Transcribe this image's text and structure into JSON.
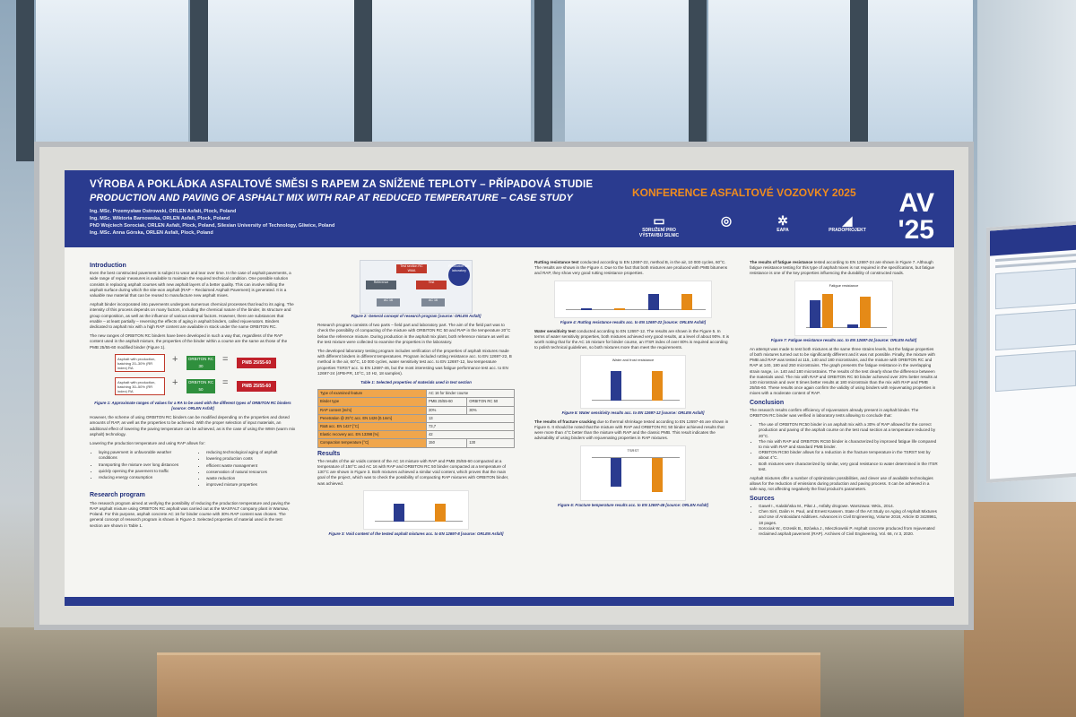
{
  "poster": {
    "title_cz": "VÝROBA A POKLÁDKA ASFALTOVÉ SMĚSI S RAPEM ZA SNÍŽENÉ TEPLOTY – PŘÍPADOVÁ STUDIE",
    "title_en": "PRODUCTION AND PAVING OF ASPHALT MIX WITH RAP AT REDUCED TEMPERATURE – CASE STUDY",
    "authors": [
      "Ing. MSc. Przemysław Ostrowski, ORLEN Asfalt, Plock, Poland",
      "Ing. MSc. Wiktoria Barnowska, ORLEN Asfalt, Plock, Poland",
      "PhD Wojciech Sorociak, ORLEN Asfalt, Plock, Poland, Silesian University of Technology, Gliwice, Poland",
      "Ing. MSc. Anna Górska, ORLEN Asfalt, Plock, Poland"
    ],
    "conference": "KONFERENCE ASFALTOVÉ VOZOVKY 2025",
    "av_mark_line1": "AV",
    "av_mark_line2": "'25",
    "logos": [
      {
        "icon": "sdruzeni-logo",
        "label": "SDRUŽENÍ PRO VÝSTAVBU SILNIC"
      },
      {
        "icon": "cs-logo",
        "label": ""
      },
      {
        "icon": "eapa-logo",
        "label": "EAPA"
      },
      {
        "icon": "pradoprojekt-logo",
        "label": "PRADOPROJEKT"
      }
    ]
  },
  "col1": {
    "intro_heading": "Introduction",
    "intro_p1": "Even the best constructed pavement is subject to wear and tear over time. In the case of asphalt pavements, a wide range of repair measures is available to maintain the required technical condition. One possible solution consists in replacing asphalt courses with new asphalt layers of a better quality. This can involve milling the asphalt surface during which the site-won asphalt (RAP – Reclaimed Asphalt Pavement) is generated. It is a valuable raw material that can be reused to manufacture new asphalt mixes.",
    "intro_p2": "Asphalt binder incorporated into pavements undergoes numerous chemical processes that lead to its aging. The intensity of this process depends on many factors, including the chemical nature of the binder, its structure and group composition, as well as the influence of various external factors. However, there are substances that enable – at least partially – reversing the effects of aging in asphalt binders, called rejuvenators. Binders dedicated to asphalt mix with a high RAP content are available in stock under the name ORBITON RC.",
    "intro_p3": "The new ranges of ORBITON RC binders have been developed in such a way that, regardless of the RAP content used in the asphalt mixture, the properties of the binder within a course are the same as those of the PMB 25/55-60 modified binder (Figure 1).",
    "rap_row1": {
      "box": "Asphalt with production, batching 20–30% (RR index) RA",
      "green": "ORBITON RC 30",
      "red": "PMB 25/55-60"
    },
    "rap_row2": {
      "box": "Asphalt with production, batching 30–50% (RR index) RA",
      "green": "ORBITON RC 50",
      "red": "PMB 25/55-60"
    },
    "fig1_caption": "Figure 1: Approximate ranges of values for a RA to be used with the different types of ORBITON RC binders [source: ORLEN Asfalt]",
    "intro_p4": "However, the scheme of using ORBITON RC binders can be modified depending on the properties and dosed amounts of RAP, as well as the properties to be achieved. With the proper selection of input materials, an additional effect of lowering the paving temperature can be achieved, as is the case of using the WMA (warm mix asphalt) technology.",
    "lower_temp_lead": "Lowering the production temperature and using RAP allows for:",
    "bullets_left": [
      "laying pavement in unfavorable weather conditions",
      "transporting the mixture over long distances",
      "quickly opening the pavement to traffic",
      "reducing energy consumption"
    ],
    "bullets_right": [
      "reducing technological aging of asphalt",
      "lowering production costs",
      "efficient waste management",
      "conservation of natural resources",
      "waste reduction",
      "improved mixture properties"
    ],
    "research_heading": "Research program",
    "research_p1": "The research program aimed at verifying the possibility of reducing the production temperature and paving the RAP asphalt mixture using ORBITON RC asphalt was carried out at the MASFALT company plant in Warsaw, Poland. For this purpose, asphalt concrete AC 16 for binder course with 30% RAP content was chosen. The general concept of research program is shown in Figure 3. Selected properties of material used in the test section are shown in Table 1."
  },
  "col2": {
    "diagram_labels": {
      "top": "Test section RC WMA",
      "left": "Reference",
      "right": "Test",
      "side": "Production site laboratory",
      "bl": "AC 16",
      "br": "AC 16"
    },
    "fig2_caption": "Figure 2: General concept of research program [source: ORLEN Asfalt]",
    "p1": "Research program consists of two parts – field part and laboratory part. The aim of the field part was to check the possibility of compacting of the mixture with ORBITON RC 50 and RAP in the temperature 20°C below the reference mixture. During production in the asphalt mix plant, both reference mixture as well as the test mixture were collected to examine the properties in the laboratory.",
    "p2": "The developed laboratory testing program includes verification of the properties of asphalt mixtures made with different binders in different temperatures. Program included rutting resistance acc. to EN 12697-22, B method in the air, 60°C, 10 000 cycles, water sensitivity test acc. to EN 12697-12, low temperature properties TSRST acc. to EN 12697-46, but the most interesting was fatigue performance test acc. to EN 12697-24 (4PB-PR, 10°C, 10 Hz, 18 samples).",
    "table1_caption": "Table 1: Selected properties of materials used in test section",
    "table1": {
      "head": [
        "Type of examined feature",
        "",
        "AC 16 for binder course"
      ],
      "subhead": [
        "Binder type",
        "PMB 25/55-60",
        "ORBITON RC 50"
      ],
      "rows": [
        [
          "RAP content [m/m]",
          "20%",
          "30%"
        ],
        [
          "Penetration @ 25°C acc. EN 1426 [0.1mm]",
          "13",
          ""
        ],
        [
          "R&B acc. EN 1427 [°C]",
          "73,7",
          ""
        ],
        [
          "Elastic recovery acc. EN 13398 [%]",
          "42",
          ""
        ],
        [
          "Compaction temperature [°C]",
          "150",
          "130"
        ]
      ],
      "group_label": "RAP binder properties"
    },
    "results_heading": "Results",
    "results_p": "The results of the air voids content of the AC 16 mixture with RAP and PMB 25/55-60 compacted at a temperature of 150°C and AC 16 with RAP and ORBITON RC 50 binder compacted at a temperature of 130°C are shown in Figure 3. Both mixtures achieved a similar void content, which proves that the main goal of the project, which was to check the possibility of compacting RAP mixtures with ORBITON binder, was achieved.",
    "fig3_caption": "Figure 3: Void content of the tested asphalt mixtures acc. to EN 12697-8 [source: ORLEN Asfalt]"
  },
  "col3": {
    "rut_lead": "Rutting resistance test",
    "rut_p": "conducted according to EN 12697-22, method B, in the air, 10 000 cycles, 60°C. The results are shown in the Figure 4. Due to the fact that both mixtures are produced with PMB bitumens and RAP, they show very good rutting resistance properties.",
    "fig4_caption": "Figure 4: Rutting resistance results acc. to EN 12697-22 [source: ORLEN Asfalt]",
    "water_lead": "Water sensitivity test",
    "water_p": "conducted according to EN 12697-12. The results are shown in the Figure 5. In terms of water sensitivity properties, both mixtures achieved very good results, at a level of about 90%. It is worth noting that for the AC 16 mixture for binder course, an ITSR index of over 80% is required according to polish technical guidelines, so both mixtures more than meet the requirements.",
    "fig5_title": "Water and frost resistance",
    "fig5_caption": "Figure 5: Water sensitivity results acc. to EN 12697-12 [source: ORLEN Asfalt]",
    "fracture_lead": "The results of fracture cracking",
    "fracture_p": "due to thermal shrinkage tested according to EN 12697-46 are shown in Figure 6. It should be noted that the mixture with RAP and ORBITON RC 50 binder achieved results that were more than 4°C better than the mixture with RAP and the classic PMB. This result indicates the advisability of using binders with rejuvenating properties in RAP mixtures.",
    "fig6_title": "TSRST",
    "fig6_caption": "Figure 6: Fracture temperature results acc. to EN 12697-46 [source: ORLEN Asfalt]"
  },
  "col4": {
    "fatigue_lead": "The results of fatigue resistance",
    "fatigue_p": "tested according to EN 12697-24 are shown in Figure 7. Although fatigue resistance testing for this type of asphalt mixes is not required in the specifications, but fatigue resistance is one of the key properties influencing the durability of constructed roads.",
    "fig7_title": "Fatigue resistance",
    "fig7_caption": "Figure 7: Fatigue resistance results acc. to EN 12697-24 [source: ORLEN Asfalt]",
    "p2": "An attempt was made to test both mixtures at the same three strains levels, but the fatigue properties of both mixtures turned out to be significantly different and it was not possible. Finally, the mixture with PMB and RAP was tested at 115, 140 and 180 microstrains, and the mixture with ORBITON RC and RAP at 140, 180 and 250 microstrains. The graph presents the fatigue resistance in the overlapping strain range, i.e. 140 and 180 microstrains. The results of the test clearly show the difference between the materials used. The mix with RAP and ORBITON RC 50 binder achieved over 20% better results at 140 microstrain and over 8 times better results at 180 microstrain than the mix with RAP and PMB 25/55-60. These results once again confirm the validity of using binders with rejuvenating properties in mixes with a moderate content of RAP.",
    "conclusion_heading": "Conclusion",
    "conclusion_p": "The research results confirm efficiency of rejuvenators already present in asphalt binder. The ORBITON RC binder was verified in laboratory tests allowing to conclude that:",
    "conclusion_bullets": [
      "The use of ORBITON RC50 binder in an asphalt mix with a 30% of RAP allowed for the correct production and paving of the asphalt course on the test road section at a temperature reduced by 20°C.",
      "The mix with RAP and ORBITON RC50 binder is characterized by improved fatigue life compared to mix with RAP and standard PMB binder.",
      "ORBITON RC50 binder allows for a reduction in the fracture temperature in the TSRST test by about 4°C.",
      "Both mixtures were characterized by similar, very good resistance to water determined in the ITSR test."
    ],
    "conclusion_p2": "Asphalt mixtures offer a number of optimization possibilities, and clever use of available technologies allows for the reduction of emissions during production and paving process. It can be achieved in a safe way, not affecting negatively the final product's parameters.",
    "sources_heading": "Sources",
    "sources": [
      "Gaweł I., Kalabińska M., Piłat J., Asfalty drogowe. Warszawa: WKiŁ, 2014.",
      "Chen Sirri, Dalim H. Paul, and Ernest Kassem. State of the Art Study on Aging of Asphalt Mixtures and Use of Antioxidant Additives. Advances in Civil Engineering, Volume 2018, Article ID 3428961, 18 pages.",
      "Sorociak W., Grzesik B., Bzówka J., Mieczkowski P. Asphalt concrete produced from rejuvenated reclaimed asphalt pavement (RAP). Archives of Civil Engineering, Vol. 66, nr 3, 2020."
    ]
  },
  "chart_data": [
    {
      "type": "bar",
      "title": "",
      "categories": [
        "PMB 25/55-60",
        "ORBITON RC 50"
      ],
      "values": [
        4.6,
        4.7
      ]
    },
    {
      "type": "bar",
      "title": "",
      "categories": [
        "PMB 25/55-60 WTS",
        "ORBITON RC 50 WTS",
        "PMB 25/55-60 PRD",
        "ORBITON RC 50 PRD"
      ],
      "values": [
        0.07,
        0.07,
        2.3,
        2.2
      ]
    },
    {
      "type": "bar",
      "title": "Water and frost resistance",
      "categories": [
        "PMB 25/55-60",
        "ORBITON RC 50"
      ],
      "values": [
        90,
        91
      ],
      "ylim": [
        0,
        100
      ]
    },
    {
      "type": "bar",
      "title": "TSRST",
      "categories": [
        "PMB 25/55-60",
        "ORBITON RC 50"
      ],
      "values": [
        -24.5,
        -28.8
      ]
    },
    {
      "type": "bar",
      "title": "Fatigue resistance",
      "categories": [
        "140 µε",
        "180 µε"
      ],
      "series": [
        {
          "name": "PMB 25/55-60",
          "values": [
            270000,
            35000
          ]
        },
        {
          "name": "ORBITON RC 50",
          "values": [
            330000,
            300000
          ]
        }
      ]
    }
  ],
  "colors": {
    "brand_blue": "#2a3b8f",
    "orange": "#f08c1e",
    "bar_orange": "#e58a17",
    "green": "#2f8f3d",
    "red": "#c0202a"
  }
}
